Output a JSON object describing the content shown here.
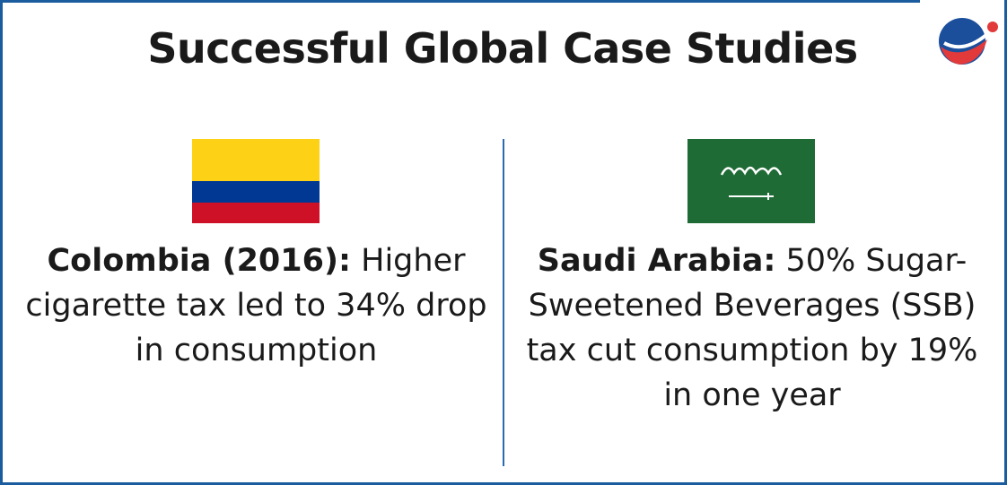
{
  "header": {
    "title": "Successful Global Case Studies"
  },
  "cases": [
    {
      "country": "Colombia",
      "label": "Colombia (2016):",
      "text": "Higher cigarette tax led to 34% drop in consumption"
    },
    {
      "country": "Saudi Arabia",
      "label": "Saudi Arabia:",
      "text": "50% Sugar-Sweetened Beverages (SSB) tax cut consumption by 19% in one year"
    }
  ]
}
